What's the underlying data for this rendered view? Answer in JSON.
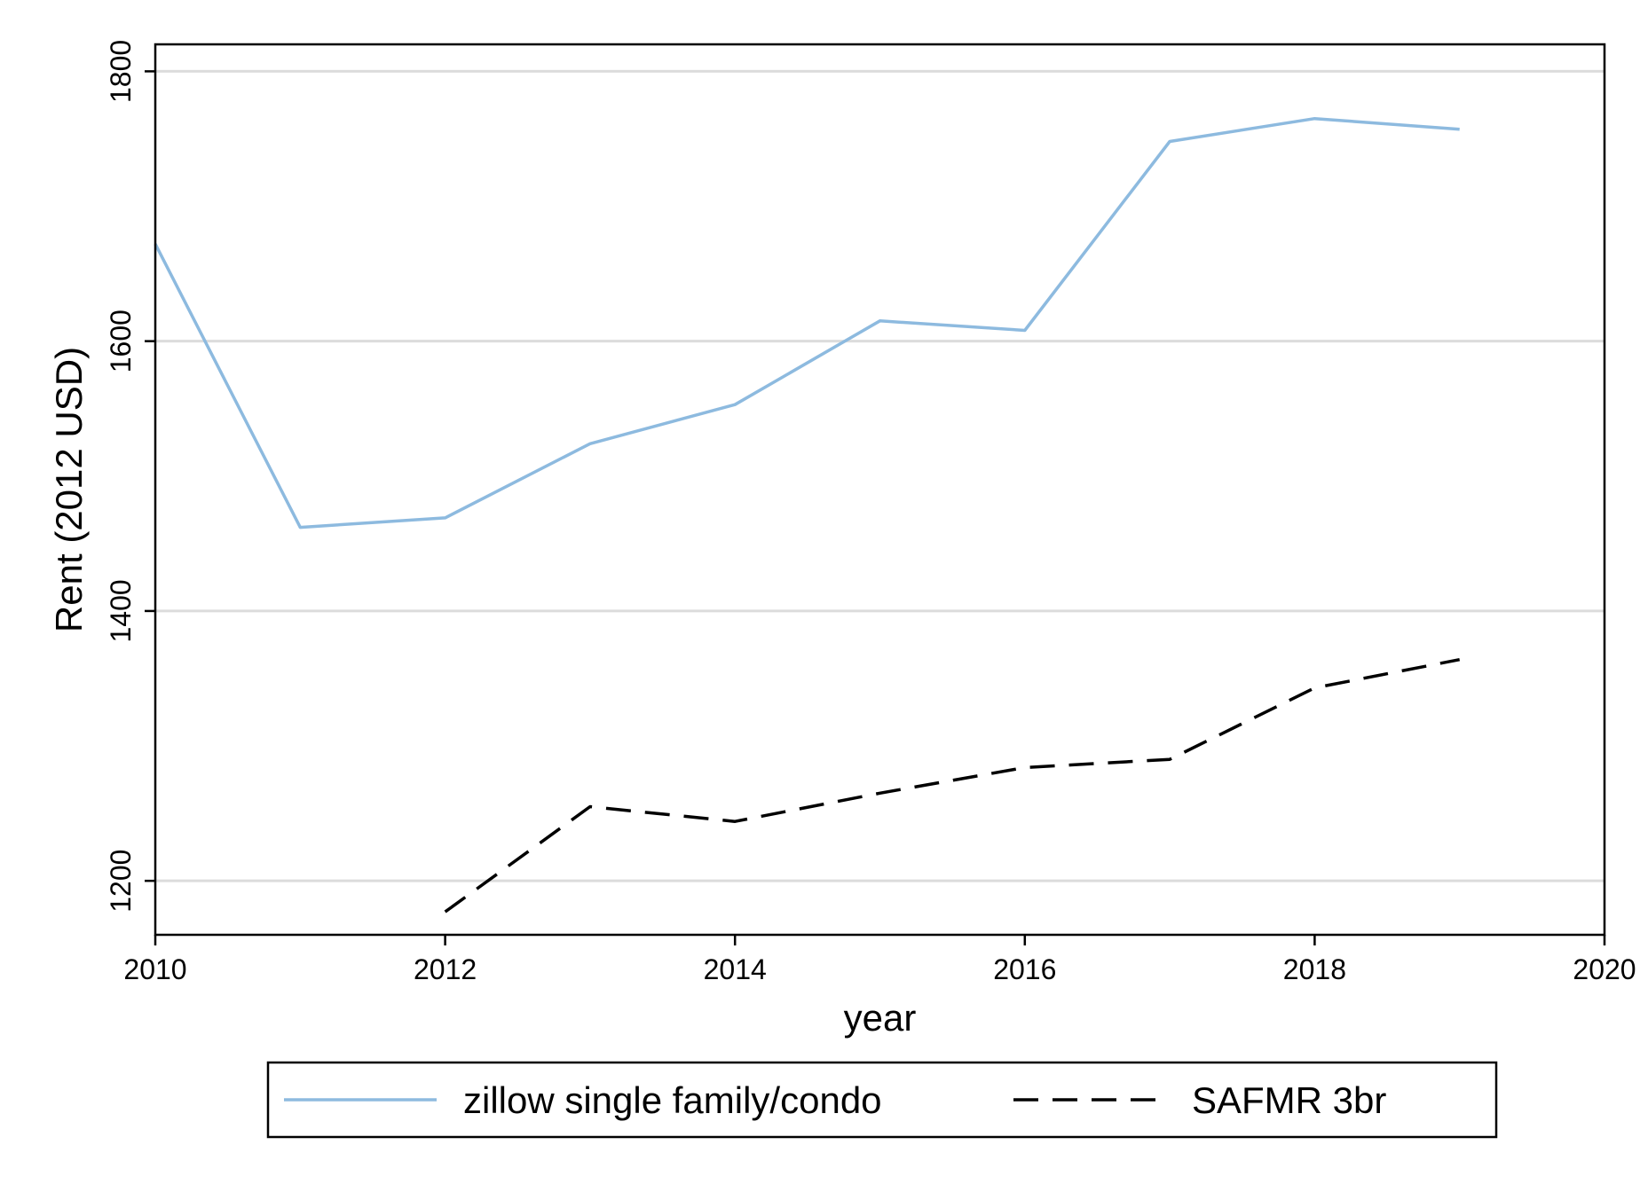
{
  "chart_data": {
    "type": "line",
    "title": "",
    "xlabel": "year",
    "ylabel": "Rent (2012 USD)",
    "xlim": [
      2010,
      2020
    ],
    "ylim": [
      1160,
      1820
    ],
    "xticks": [
      2010,
      2012,
      2014,
      2016,
      2018,
      2020
    ],
    "yticks": [
      1200,
      1400,
      1600,
      1800
    ],
    "grid": "horizontal",
    "legend_position": "bottom",
    "series": [
      {
        "name": "zillow single family/condo",
        "color": "#8dbadf",
        "style": "solid",
        "x": [
          2010,
          2011,
          2012,
          2013,
          2014,
          2015,
          2016,
          2017,
          2018,
          2019
        ],
        "y": [
          1672,
          1462,
          1469,
          1524,
          1553,
          1615,
          1608,
          1748,
          1765,
          1757
        ]
      },
      {
        "name": "SAFMR 3br",
        "color": "#000000",
        "style": "dashed",
        "x": [
          2012,
          2013,
          2014,
          2015,
          2016,
          2017,
          2018,
          2019
        ],
        "y": [
          1177,
          1255,
          1244,
          1265,
          1284,
          1290,
          1343,
          1364
        ]
      }
    ]
  }
}
